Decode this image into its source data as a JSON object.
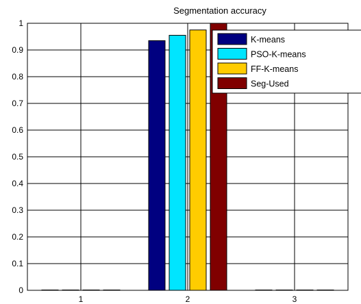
{
  "chart_data": {
    "type": "bar",
    "title": "Segmentation accuracy",
    "xlabel": "",
    "ylabel": "",
    "categories": [
      "1",
      "2",
      "3"
    ],
    "ylim": [
      0,
      1
    ],
    "yticks": [
      "0",
      "0.1",
      "0.2",
      "0.3",
      "0.4",
      "0.5",
      "0.6",
      "0.7",
      "0.8",
      "0.9",
      "1"
    ],
    "grid": true,
    "legend_position": "top-right",
    "series": [
      {
        "name": "K-means",
        "color": "#000080",
        "values": [
          0,
          0.935,
          0
        ]
      },
      {
        "name": "PSO-K-means",
        "color": "#00e5ff",
        "values": [
          0,
          0.955,
          0
        ]
      },
      {
        "name": "FF-K-means",
        "color": "#ffcc00",
        "values": [
          0,
          0.975,
          0
        ]
      },
      {
        "name": "Seg-Used",
        "color": "#800000",
        "values": [
          0,
          1.0,
          0
        ]
      }
    ]
  }
}
